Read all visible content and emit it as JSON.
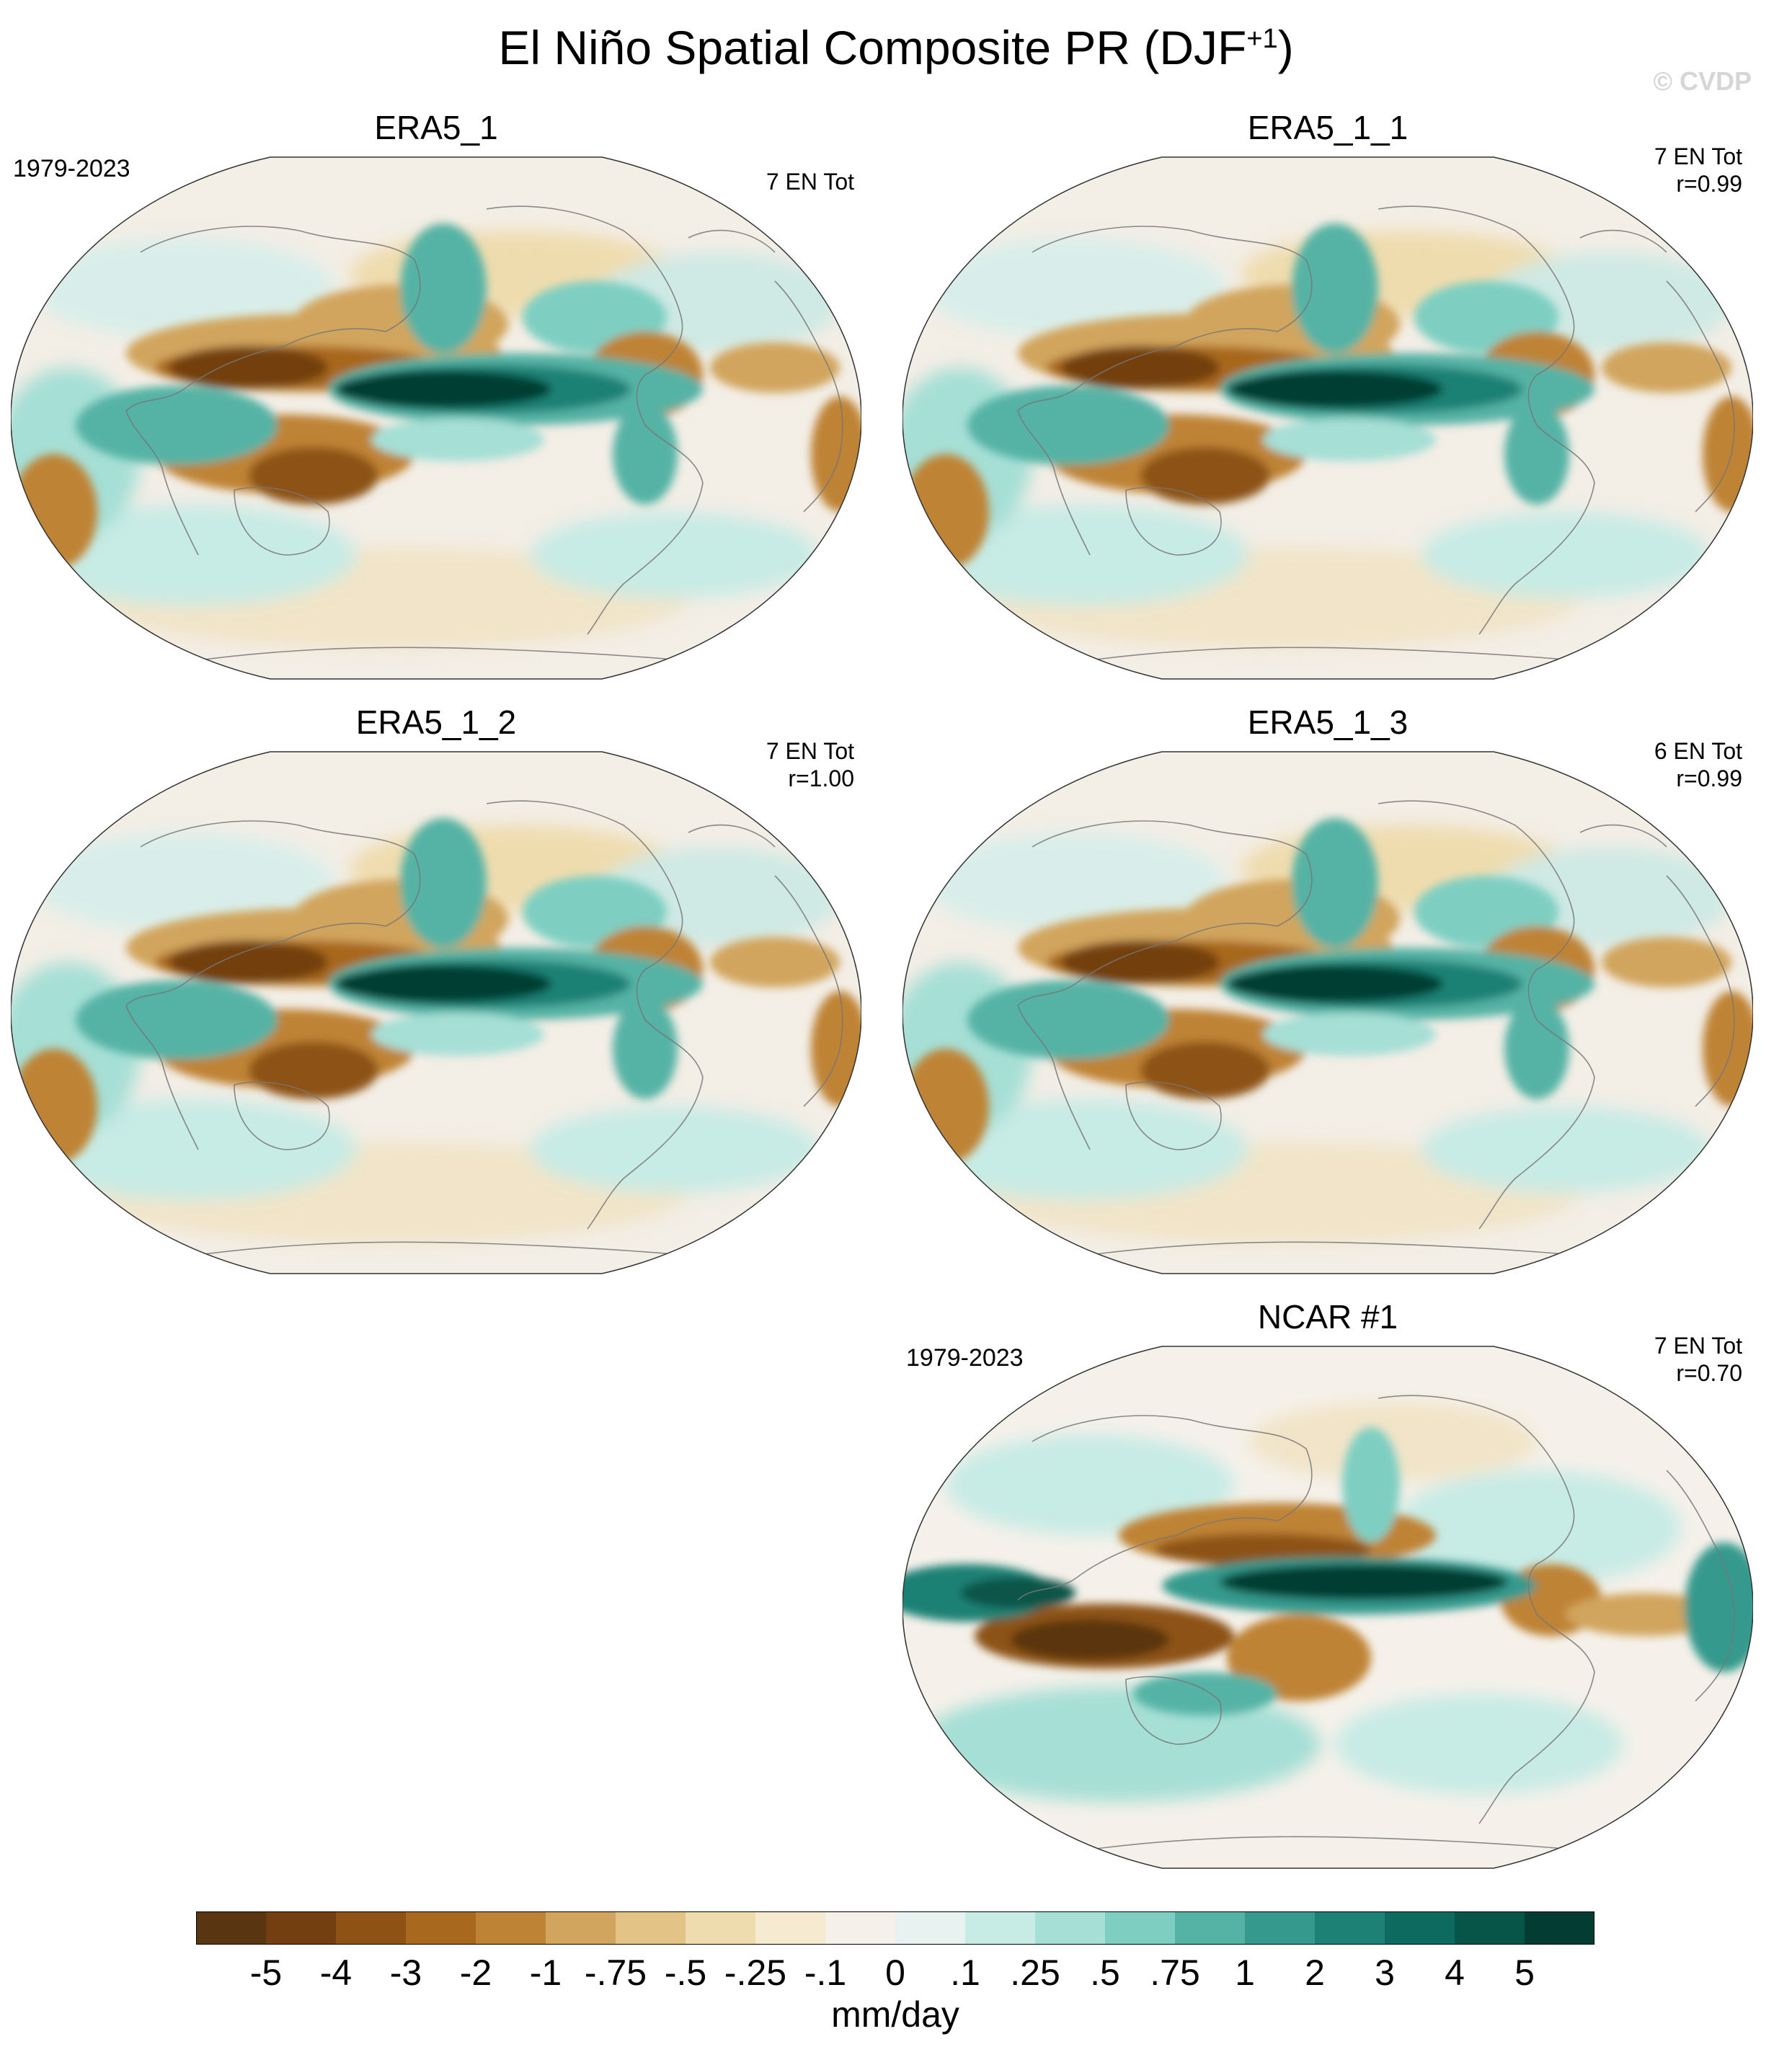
{
  "title": {
    "main": "El Niño Spatial Composite PR (DJF",
    "superscript": "+1",
    "close": ")"
  },
  "watermark": "© CVDP",
  "panels": [
    {
      "id": "era5_1",
      "name": "ERA5_1",
      "years": "1979-2023",
      "events": "7 EN Tot",
      "r": ""
    },
    {
      "id": "era5_1_1",
      "name": "ERA5_1_1",
      "years": "",
      "events": "7 EN Tot",
      "r": "r=0.99"
    },
    {
      "id": "era5_1_2",
      "name": "ERA5_1_2",
      "years": "",
      "events": "7 EN Tot",
      "r": "r=1.00"
    },
    {
      "id": "era5_1_3",
      "name": "ERA5_1_3",
      "years": "",
      "events": "6 EN Tot",
      "r": "r=0.99"
    },
    {
      "id": "ncar_1",
      "name": "NCAR #1",
      "years": "1979-2023",
      "events": "7 EN Tot",
      "r": "r=0.70"
    }
  ],
  "colorbar": {
    "units": "mm/day",
    "tick_labels": [
      "-5",
      "-4",
      "-3",
      "-2",
      "-1",
      "-.75",
      "-.5",
      "-.25",
      "-.1",
      "0",
      ".1",
      ".25",
      ".5",
      ".75",
      "1",
      "2",
      "3",
      "4",
      "5"
    ],
    "colors": [
      "#5a3511",
      "#733f10",
      "#8d5214",
      "#a8681e",
      "#bf8335",
      "#d1a55d",
      "#e3c386",
      "#efdcae",
      "#f6ead0",
      "#f5f1ea",
      "#e8f3f1",
      "#c7ebe5",
      "#a6dfd6",
      "#7ecfc2",
      "#55b3a5",
      "#359a8d",
      "#1e8175",
      "#0c6a5e",
      "#075449",
      "#033c33"
    ]
  }
}
